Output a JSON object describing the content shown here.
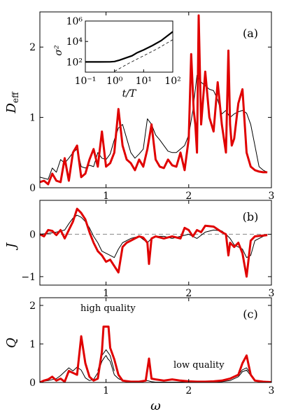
{
  "chart_data": [
    {
      "type": "line",
      "panel_label": "(a)",
      "ylabel": "D_eff",
      "xlim": [
        0.2,
        3.0
      ],
      "ylim": [
        0,
        2.5
      ],
      "xticks": [
        1,
        2,
        3
      ],
      "yticks": [
        0,
        1,
        2
      ],
      "series": [
        {
          "color": "#000000",
          "x": [
            0.2,
            0.3,
            0.35,
            0.4,
            0.45,
            0.5,
            0.55,
            0.6,
            0.65,
            0.7,
            0.75,
            0.8,
            0.85,
            0.9,
            0.95,
            1.0,
            1.05,
            1.1,
            1.15,
            1.2,
            1.25,
            1.3,
            1.35,
            1.4,
            1.45,
            1.5,
            1.55,
            1.6,
            1.65,
            1.7,
            1.75,
            1.8,
            1.85,
            1.9,
            1.95,
            2.0,
            2.05,
            2.1,
            2.15,
            2.2,
            2.25,
            2.3,
            2.35,
            2.4,
            2.45,
            2.5,
            2.55,
            2.6,
            2.65,
            2.7,
            2.75,
            2.8,
            2.85,
            2.9,
            2.95
          ],
          "y": [
            0.15,
            0.12,
            0.28,
            0.22,
            0.4,
            0.35,
            0.42,
            0.5,
            0.55,
            0.3,
            0.28,
            0.32,
            0.3,
            0.5,
            0.42,
            0.4,
            0.48,
            0.68,
            0.85,
            0.9,
            0.7,
            0.5,
            0.42,
            0.48,
            0.55,
            0.98,
            0.9,
            0.75,
            0.68,
            0.6,
            0.52,
            0.5,
            0.5,
            0.55,
            0.6,
            0.75,
            1.1,
            1.6,
            1.5,
            1.45,
            1.4,
            1.38,
            1.25,
            1.05,
            1.1,
            1.0,
            1.05,
            1.08,
            1.1,
            1.06,
            0.9,
            0.6,
            0.3,
            0.25,
            0.22
          ]
        },
        {
          "color": "#e00000",
          "x": [
            0.2,
            0.25,
            0.3,
            0.35,
            0.4,
            0.45,
            0.5,
            0.55,
            0.6,
            0.65,
            0.7,
            0.75,
            0.8,
            0.85,
            0.9,
            0.95,
            1.0,
            1.05,
            1.1,
            1.15,
            1.2,
            1.25,
            1.3,
            1.35,
            1.4,
            1.45,
            1.5,
            1.55,
            1.6,
            1.65,
            1.7,
            1.75,
            1.8,
            1.85,
            1.9,
            1.95,
            2.0,
            2.03,
            2.06,
            2.08,
            2.1,
            2.12,
            2.15,
            2.2,
            2.25,
            2.3,
            2.35,
            2.4,
            2.45,
            2.48,
            2.5,
            2.52,
            2.55,
            2.6,
            2.65,
            2.7,
            2.75,
            2.8,
            2.85,
            2.9,
            2.95
          ],
          "y": [
            0.08,
            0.1,
            0.05,
            0.2,
            0.1,
            0.08,
            0.42,
            0.1,
            0.5,
            0.6,
            0.15,
            0.2,
            0.4,
            0.55,
            0.3,
            0.8,
            0.3,
            0.35,
            0.5,
            1.12,
            0.6,
            0.4,
            0.35,
            0.25,
            0.4,
            0.3,
            0.55,
            0.9,
            0.4,
            0.3,
            0.28,
            0.4,
            0.32,
            0.3,
            0.5,
            0.25,
            0.7,
            1.9,
            1.1,
            0.9,
            0.5,
            2.45,
            0.9,
            1.65,
            1.0,
            0.8,
            1.5,
            0.9,
            0.5,
            1.95,
            0.9,
            0.6,
            0.7,
            1.2,
            1.4,
            0.5,
            0.3,
            0.25,
            0.23,
            0.22,
            0.22
          ]
        }
      ],
      "inset": {
        "xlabel": "t/T",
        "ylabel": "σ²",
        "xscale": "log",
        "yscale": "log",
        "xlim": [
          0.1,
          100
        ],
        "ylim": [
          10,
          1000000
        ],
        "xticks": [
          0.1,
          1,
          10,
          100
        ],
        "xtick_labels": [
          "10⁻¹",
          "10⁰",
          "10¹",
          "10²"
        ],
        "yticks": [
          100,
          10000,
          1000000
        ],
        "ytick_labels": [
          "10²",
          "10⁴",
          "10⁶"
        ],
        "series": [
          {
            "style": "solid",
            "x": [
              0.1,
              0.3,
              0.7,
              1.0,
              1.5,
              2.5,
              4,
              6,
              10,
              20,
              40,
              100
            ],
            "y": [
              100,
              100,
              102,
              110,
              150,
              250,
              400,
              800,
              1500,
              4000,
              12000,
              90000
            ]
          },
          {
            "style": "dashed",
            "x": [
              1,
              3,
              10,
              30,
              100
            ],
            "y": [
              12,
              70,
              400,
              2000,
              15000
            ]
          }
        ]
      }
    },
    {
      "type": "line",
      "panel_label": "(b)",
      "ylabel": "J",
      "xlim": [
        0.2,
        3.0
      ],
      "ylim": [
        -1.2,
        0.8
      ],
      "xticks": [
        1,
        2,
        3
      ],
      "yticks": [
        -1,
        0
      ],
      "reference_line": 0,
      "series": [
        {
          "color": "#000000",
          "x": [
            0.2,
            0.3,
            0.4,
            0.5,
            0.55,
            0.6,
            0.65,
            0.7,
            0.75,
            0.8,
            0.85,
            0.9,
            0.95,
            1.0,
            1.05,
            1.1,
            1.15,
            1.2,
            1.3,
            1.4,
            1.5,
            1.55,
            1.6,
            1.7,
            1.8,
            1.9,
            2.0,
            2.1,
            2.2,
            2.3,
            2.4,
            2.45,
            2.5,
            2.55,
            2.6,
            2.65,
            2.7,
            2.75,
            2.8,
            2.9,
            2.95
          ],
          "y": [
            0,
            0.02,
            0.05,
            0.1,
            0.25,
            0.38,
            0.45,
            0.4,
            0.3,
            0.15,
            -0.05,
            -0.2,
            -0.4,
            -0.45,
            -0.5,
            -0.55,
            -0.35,
            -0.2,
            -0.1,
            -0.05,
            -0.2,
            -0.1,
            -0.05,
            -0.05,
            -0.1,
            -0.05,
            0,
            -0.1,
            0.05,
            0.1,
            0.08,
            0,
            -0.1,
            -0.25,
            -0.3,
            -0.35,
            -0.55,
            -0.5,
            -0.15,
            -0.05,
            -0.03
          ]
        },
        {
          "color": "#e00000",
          "x": [
            0.2,
            0.25,
            0.3,
            0.35,
            0.4,
            0.45,
            0.5,
            0.55,
            0.6,
            0.65,
            0.7,
            0.75,
            0.8,
            0.85,
            0.9,
            0.95,
            1.0,
            1.05,
            1.1,
            1.15,
            1.2,
            1.25,
            1.3,
            1.35,
            1.4,
            1.45,
            1.5,
            1.52,
            1.55,
            1.6,
            1.7,
            1.8,
            1.9,
            1.95,
            2.0,
            2.05,
            2.1,
            2.15,
            2.2,
            2.3,
            2.4,
            2.45,
            2.48,
            2.5,
            2.55,
            2.6,
            2.65,
            2.7,
            2.75,
            2.8,
            2.9,
            2.95
          ],
          "y": [
            0,
            -0.05,
            0.1,
            0.08,
            -0.02,
            0.1,
            -0.1,
            0.1,
            0.3,
            0.6,
            0.5,
            0.35,
            0.05,
            -0.2,
            -0.4,
            -0.5,
            -0.65,
            -0.6,
            -0.75,
            -0.9,
            -0.3,
            -0.2,
            -0.15,
            -0.1,
            -0.05,
            -0.08,
            -0.2,
            -0.7,
            -0.1,
            -0.05,
            -0.1,
            -0.05,
            -0.1,
            0.15,
            0.1,
            -0.05,
            0.1,
            0.05,
            0.2,
            0.18,
            0.05,
            0,
            -0.5,
            -0.2,
            -0.3,
            -0.2,
            -0.45,
            -1.0,
            -0.15,
            -0.05,
            -0.03,
            -0.02
          ]
        }
      ]
    },
    {
      "type": "line",
      "panel_label": "(c)",
      "ylabel": "Q",
      "xlabel": "ω",
      "xlim": [
        0.2,
        3.0
      ],
      "ylim": [
        0,
        2.2
      ],
      "xticks": [
        1,
        2,
        3
      ],
      "yticks": [
        0,
        1,
        2
      ],
      "annotations": [
        "high quality",
        "low quality"
      ],
      "series": [
        {
          "color": "#000000",
          "x": [
            0.2,
            0.3,
            0.4,
            0.45,
            0.5,
            0.55,
            0.6,
            0.65,
            0.7,
            0.75,
            0.8,
            0.85,
            0.9,
            0.95,
            0.98,
            1.0,
            1.02,
            1.05,
            1.1,
            1.15,
            1.2,
            1.3,
            1.4,
            1.5,
            1.55,
            1.6,
            1.7,
            1.8,
            2.0,
            2.2,
            2.4,
            2.5,
            2.6,
            2.65,
            2.7,
            2.75,
            2.8,
            2.9,
            3.0
          ],
          "y": [
            0.02,
            0.05,
            0.1,
            0.18,
            0.28,
            0.38,
            0.3,
            0.4,
            0.32,
            0.12,
            0.05,
            0.08,
            0.25,
            0.55,
            0.65,
            0.7,
            0.62,
            0.55,
            0.2,
            0.1,
            0.05,
            0.03,
            0.02,
            0.05,
            0.02,
            0.01,
            0.01,
            0.01,
            0.01,
            0.01,
            0.02,
            0.05,
            0.15,
            0.28,
            0.32,
            0.18,
            0.05,
            0.02,
            0.01
          ]
        },
        {
          "color": "#000000",
          "x": [
            0.9,
            0.95,
            1.0,
            1.05,
            1.1
          ],
          "y": [
            0.3,
            0.7,
            0.85,
            0.7,
            0.3
          ]
        },
        {
          "color": "#000000",
          "x": [
            2.6,
            2.65,
            2.7,
            2.75
          ],
          "y": [
            0.2,
            0.33,
            0.38,
            0.22
          ]
        },
        {
          "color": "#e00000",
          "x": [
            0.2,
            0.25,
            0.3,
            0.35,
            0.4,
            0.45,
            0.5,
            0.55,
            0.6,
            0.65,
            0.7,
            0.75,
            0.8,
            0.85,
            0.9,
            0.95,
            0.97,
            1.0,
            1.03,
            1.05,
            1.1,
            1.15,
            1.2,
            1.3,
            1.4,
            1.48,
            1.52,
            1.55,
            1.6,
            1.7,
            1.8,
            1.9,
            2.0,
            2.1,
            2.2,
            2.3,
            2.4,
            2.5,
            2.6,
            2.65,
            2.7,
            2.75,
            2.8,
            2.9,
            3.0
          ],
          "y": [
            0,
            0.05,
            0.08,
            0.15,
            0.05,
            0.1,
            0.02,
            0.3,
            0.25,
            0.2,
            1.2,
            0.5,
            0.15,
            0.05,
            0.1,
            0.8,
            1.45,
            1.45,
            1.45,
            0.9,
            0.6,
            0.2,
            0.05,
            0.02,
            0.02,
            0.05,
            0.62,
            0.1,
            0.08,
            0.05,
            0.08,
            0.05,
            0.03,
            0.02,
            0.02,
            0.03,
            0.05,
            0.1,
            0.2,
            0.5,
            0.7,
            0.2,
            0.05,
            0.02,
            0.01
          ]
        }
      ]
    }
  ]
}
